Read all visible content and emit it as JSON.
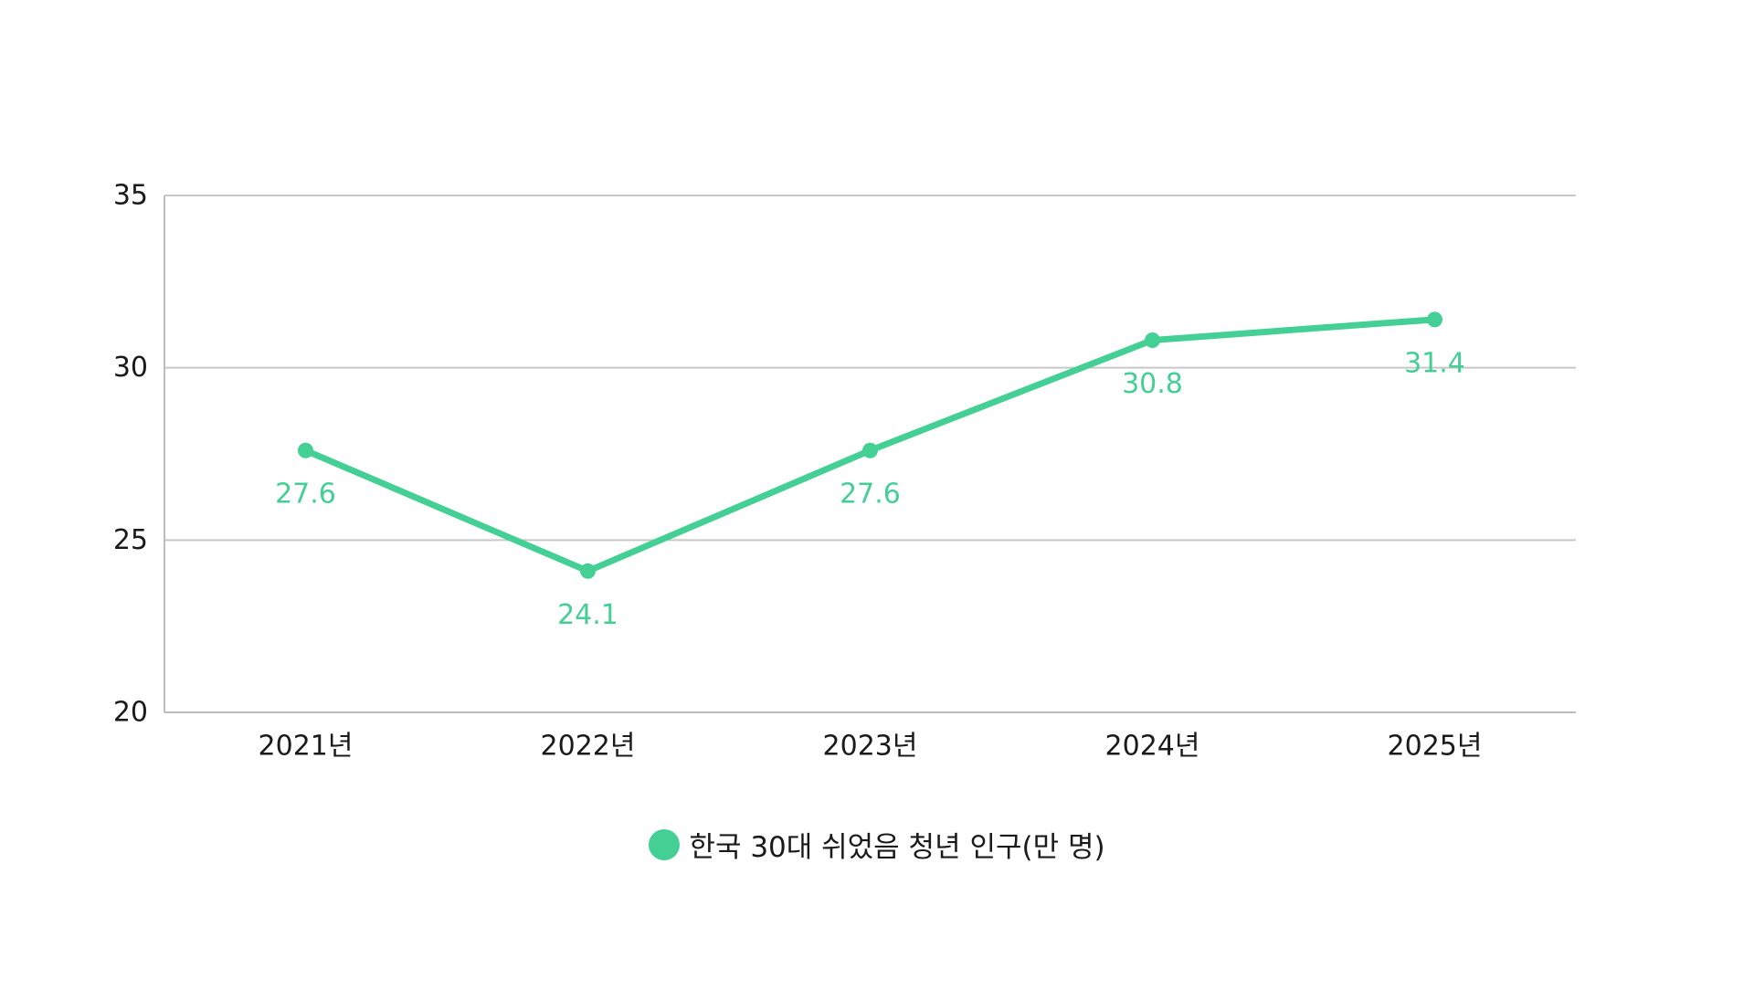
{
  "chart_data": {
    "type": "line",
    "categories": [
      "2021년",
      "2022년",
      "2023년",
      "2024년",
      "2025년"
    ],
    "series": [
      {
        "name": "한국 30대 쉬었음 청년 인구(만 명)",
        "values": [
          27.6,
          24.1,
          27.6,
          30.8,
          31.4
        ],
        "color": "#44cf94"
      }
    ],
    "data_labels": [
      "27.6",
      "24.1",
      "27.6",
      "30.8",
      "31.4"
    ],
    "ylim": [
      20,
      35
    ],
    "yticks": [
      20,
      25,
      30,
      35
    ],
    "ytick_labels": [
      "20",
      "25",
      "30",
      "35"
    ],
    "grid": true,
    "legend_position": "bottom-center",
    "title": "",
    "xlabel": "",
    "ylabel": ""
  },
  "colors": {
    "series": "#44cf94",
    "grid": "#c8c8c8",
    "axis": "#bdbdbd",
    "text": "#1a1a1a"
  }
}
